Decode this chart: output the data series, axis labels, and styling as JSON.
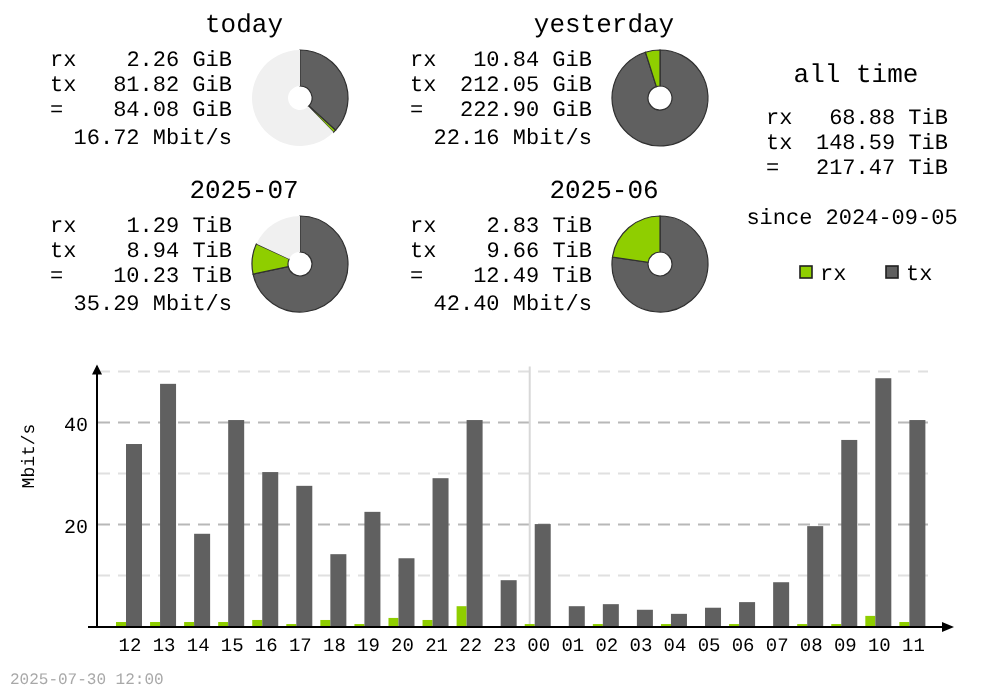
{
  "chart_data": [
    {
      "type": "donut",
      "title": "today",
      "categories": [
        null,
        null,
        null
      ],
      "values": [
        36.7,
        1.0,
        62.3
      ],
      "colors": [
        "#606060",
        "#8fce00",
        "#f0f0f0"
      ],
      "annotations": [
        "rx",
        "2.26 GiB",
        "tx",
        "81.82 GiB",
        "=",
        "84.08 GiB",
        "16.72 Mbit/s"
      ]
    },
    {
      "type": "donut",
      "title": "yesterday",
      "categories": [
        null,
        null
      ],
      "values": [
        95.1,
        4.9
      ],
      "colors": [
        "#606060",
        "#8fce00"
      ],
      "annotations": [
        "rx",
        "10.84 GiB",
        "tx",
        "212.05 GiB",
        "=",
        "222.90 GiB",
        "22.16 Mbit/s"
      ]
    },
    {
      "type": "donut",
      "title": "2025-07",
      "categories": [
        null,
        null,
        null
      ],
      "values": [
        71.6,
        10.3,
        18.1
      ],
      "colors": [
        "#606060",
        "#8fce00",
        "#f0f0f0"
      ],
      "annotations": [
        "rx",
        "1.29 TiB",
        "tx",
        "8.94 TiB",
        "=",
        "10.23 TiB",
        "35.29 Mbit/s"
      ]
    },
    {
      "type": "donut",
      "title": "2025-06",
      "categories": [
        null,
        null
      ],
      "values": [
        77.3,
        22.7
      ],
      "colors": [
        "#606060",
        "#8fce00"
      ],
      "annotations": [
        "rx",
        "2.83 TiB",
        "tx",
        "9.66 TiB",
        "=",
        "12.49 TiB",
        "42.40 Mbit/s"
      ]
    },
    {
      "type": "other",
      "title": "all time",
      "annotations": [
        "rx",
        "68.88 TiB",
        "tx",
        "148.59 TiB",
        "=",
        "217.47 TiB",
        "since 2024-09-05"
      ]
    },
    {
      "type": "bar",
      "ylabel": "Mbit/s",
      "categories": [
        "12",
        "13",
        "14",
        "15",
        "16",
        "17",
        "18",
        "19",
        "20",
        "21",
        "22",
        "23",
        "00",
        "01",
        "02",
        "03",
        "04",
        "05",
        "06",
        "07",
        "08",
        "09",
        "10",
        "11"
      ],
      "series": [
        {
          "name": "rx",
          "color": "#8fce00",
          "values": [
            0.9,
            0.9,
            0.9,
            0.9,
            1.3,
            0.5,
            1.3,
            0.5,
            1.7,
            1.3,
            4.0,
            0,
            0.5,
            0,
            0.5,
            0,
            0.5,
            0,
            0.5,
            0,
            0.5,
            0.5,
            2.1,
            0.9
          ]
        },
        {
          "name": "tx",
          "color": "#606060",
          "values": [
            35.8,
            47.6,
            18.2,
            40.5,
            30.3,
            27.6,
            14.2,
            22.5,
            13.4,
            29.1,
            40.5,
            9.1,
            20.1,
            4.0,
            4.4,
            3.3,
            2.5,
            3.7,
            4.8,
            8.7,
            19.7,
            36.6,
            48.7,
            40.5
          ]
        }
      ],
      "ylim": [
        0,
        51
      ],
      "yticks": [
        {
          "value": 0,
          "label": null
        },
        {
          "value": 10,
          "label": null
        },
        20,
        {
          "value": 30,
          "label": null
        },
        40,
        {
          "value": 50,
          "label": null
        }
      ],
      "grid": "y",
      "legend": "top right",
      "ref_lines": [
        {
          "axis": "x",
          "value": "00",
          "color": "#d8d8d8"
        }
      ],
      "annotations": [
        "2025-07-30 12:00"
      ]
    }
  ]
}
